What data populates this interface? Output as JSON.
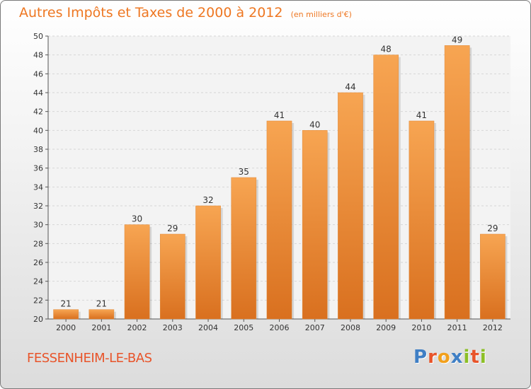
{
  "chart_data": {
    "type": "bar",
    "title": "Autres Impôts et Taxes de 2000 à 2012",
    "unit": "(en milliers d'€)",
    "categories": [
      "2000",
      "2001",
      "2002",
      "2003",
      "2004",
      "2005",
      "2006",
      "2007",
      "2008",
      "2009",
      "2010",
      "2011",
      "2012"
    ],
    "values": [
      21,
      21,
      30,
      29,
      32,
      35,
      41,
      40,
      44,
      48,
      41,
      49,
      29
    ],
    "ylim": [
      20,
      50
    ],
    "yticks": [
      20,
      22,
      24,
      26,
      28,
      30,
      32,
      34,
      36,
      38,
      40,
      42,
      44,
      46,
      48,
      50
    ],
    "grid": true,
    "bar_color_top": "#f7a552",
    "bar_color_bottom": "#d9701f"
  },
  "footer": {
    "commune": "FESSENHEIM-LE-BAS",
    "logo_letters": [
      "P",
      "r",
      "o",
      "x",
      "i",
      "t",
      "i"
    ],
    "logo_colors": [
      "#3f7fc5",
      "#e8542a",
      "#f2a01c",
      "#3f7fc5",
      "#8cbf26",
      "#e8542a",
      "#8cbf26"
    ]
  }
}
